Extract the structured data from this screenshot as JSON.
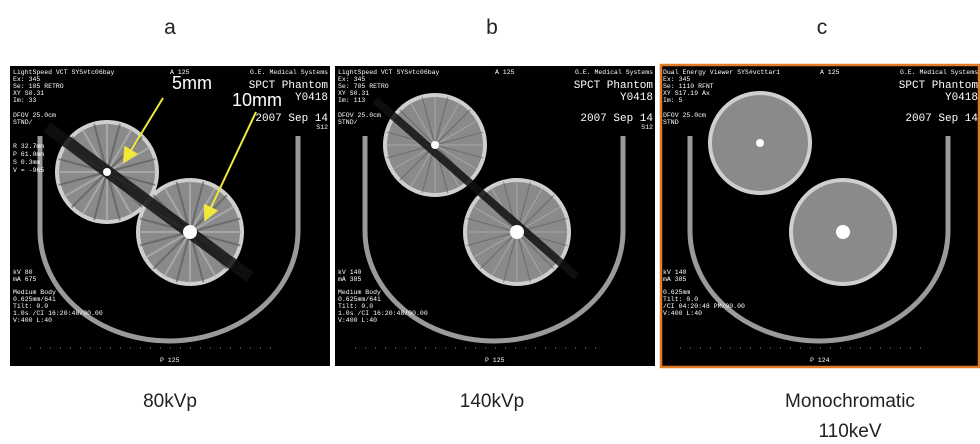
{
  "panels": [
    {
      "letter": "a",
      "caption": [
        "80kVp"
      ],
      "top_left": [
        "LightSpeed VCT SYS#tc06bay",
        "Ex: 345",
        "Se: 105 RETRO",
        "XY S0.31",
        "Im: 33",
        "DFOV 25.0cm",
        "STND/"
      ],
      "top_center": "A 125",
      "top_right": [
        "G.E. Medical Systems",
        "SPCT Phantom",
        "Y0418",
        "2007 Sep 14",
        "S12"
      ],
      "mid_left": [
        "R 32.7mm",
        "P 61.0mm",
        "S 0.3mm",
        "V = -965"
      ],
      "bottom_left": [
        "kV 80",
        "mA 675",
        "Medium Body",
        "0.625mm/64i",
        "Tilt: 0.0",
        "1.0s /CI 16:20:48/00.00",
        "V:400 L:40"
      ],
      "bottom_center": "P 125",
      "annotations": [
        "5mm",
        "10mm"
      ]
    },
    {
      "letter": "b",
      "caption": [
        "140kVp"
      ],
      "top_left": [
        "LightSpeed VCT SYS#tc06bay",
        "Ex: 345",
        "Se: 705 RETRO",
        "XY S0.31",
        "Im: 113",
        "DFOV 25.0cm",
        "STND/"
      ],
      "top_center": "A 125",
      "top_right": [
        "G.E. Medical Systems",
        "SPCT Phantom",
        "Y0418",
        "2007 Sep 14",
        "S12"
      ],
      "bottom_left": [
        "kV 140",
        "mA 385",
        "Medium Body",
        "0.625mm/64i",
        "Tilt: 0.0",
        "1.0s /CI 16:20:48/00.00",
        "V:400 L:40"
      ],
      "bottom_center": "P 125"
    },
    {
      "letter": "c",
      "caption": [
        "Monochromatic",
        "110keV"
      ],
      "top_left": [
        "Dual Energy Viewer SYS#vcttar1",
        "Ex: 345",
        "Se: 1110 RFNT",
        "XY S17.19 Ax",
        "Im: 5",
        "DFOV 25.0cm",
        "STND"
      ],
      "top_center": "A 125",
      "top_right": [
        "G.E. Medical Systems",
        "SPCT Phantom",
        "Y0418",
        "2007 Sep 14"
      ],
      "bottom_left": [
        "kV 140",
        "mA 385",
        "0.625mm",
        "Tilt: 0.0",
        "/CI 04:20:48 PM/00.00",
        "V:400 L:40"
      ],
      "bottom_center": "P 124"
    }
  ]
}
